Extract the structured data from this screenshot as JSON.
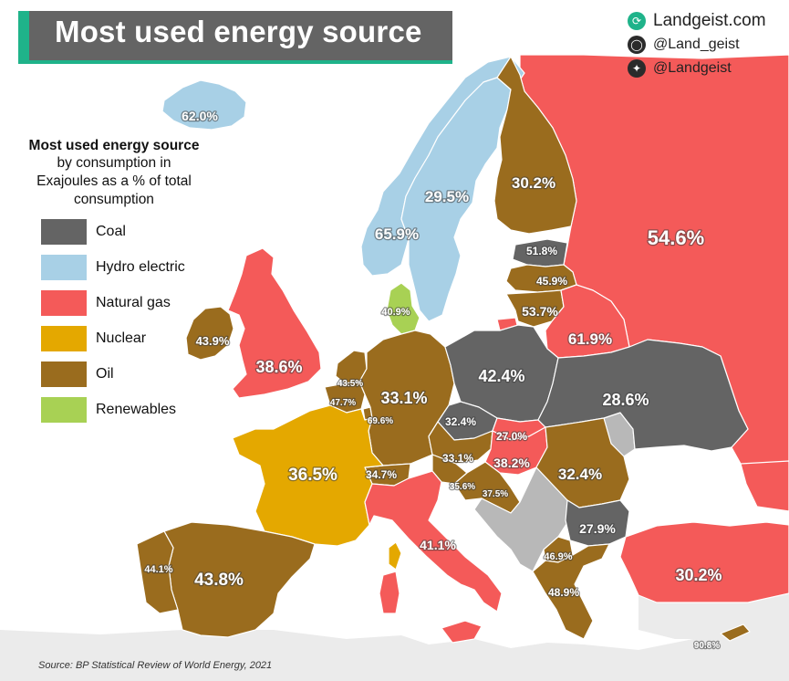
{
  "title": "Most used energy source",
  "social": {
    "website": "Landgeist.com",
    "instagram": "@Land_geist",
    "twitter": "@Landgeist"
  },
  "legend": {
    "title": "Most used energy source",
    "subtitle": "by consumption in Exajoules as a % of total consumption",
    "items": [
      {
        "label": "Coal",
        "color": "#646464"
      },
      {
        "label": "Hydro electric",
        "color": "#a8d0e6"
      },
      {
        "label": "Natural gas",
        "color": "#f45a59"
      },
      {
        "label": "Nuclear",
        "color": "#e4a800"
      },
      {
        "label": "Oil",
        "color": "#9a6c1e"
      },
      {
        "label": "Renewables",
        "color": "#a8d154"
      }
    ]
  },
  "countries": {
    "iceland": "62.0%",
    "norway": "65.9%",
    "sweden": "29.5%",
    "finland": "30.2%",
    "russia": "54.6%",
    "estonia": "51.8%",
    "latvia": "45.9%",
    "lithuania": "53.7%",
    "belarus": "61.9%",
    "denmark": "40.9%",
    "ireland": "43.9%",
    "uk": "38.6%",
    "netherlands": "43.5%",
    "belgium": "47.7%",
    "luxembourg": "69.6%",
    "germany": "33.1%",
    "poland": "42.4%",
    "czechia": "32.4%",
    "slovakia": "27.0%",
    "austria": "33.1%",
    "hungary": "38.2%",
    "switzerland": "34.7%",
    "slovenia": "35.6%",
    "croatia": "37.5%",
    "ukraine": "28.6%",
    "romania": "32.4%",
    "bulgaria": "27.9%",
    "north_macedonia": "46.9%",
    "greece": "48.9%",
    "turkey": "30.2%",
    "cyprus": "90.8%",
    "france": "36.5%",
    "italy": "41.1%",
    "spain": "43.8%",
    "portugal": "44.1%"
  },
  "source": "Source: BP Statistical Review of World Energy, 2021"
}
